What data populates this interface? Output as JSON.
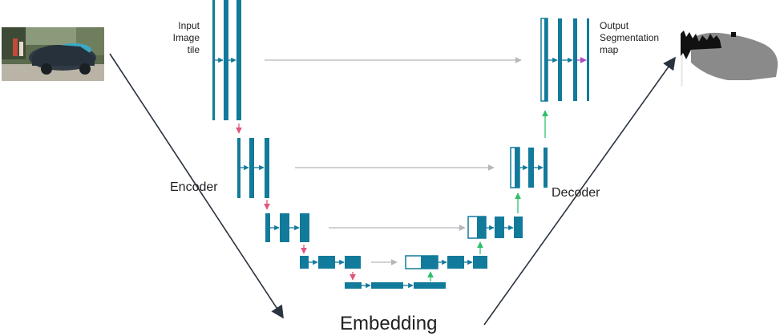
{
  "labels": {
    "input_line1": "Input",
    "input_line2": "Image",
    "input_line3": "tile",
    "output_line1": "Output",
    "output_line2": "Segmentation",
    "output_line3": "map",
    "encoder": "Encoder",
    "decoder": "Decoder",
    "embedding": "Embedding"
  },
  "images": {
    "input": "input-photo-car",
    "output": "output-segmentation-map"
  },
  "colors": {
    "block": "#127a9b",
    "arrow_conv": "#127a9b",
    "arrow_skip": "#b5b8ba",
    "arrow_down": "#e0567a",
    "arrow_up": "#2fbf6b",
    "arrow_out": "#b049c8",
    "big_arrow": "#2a3340"
  }
}
